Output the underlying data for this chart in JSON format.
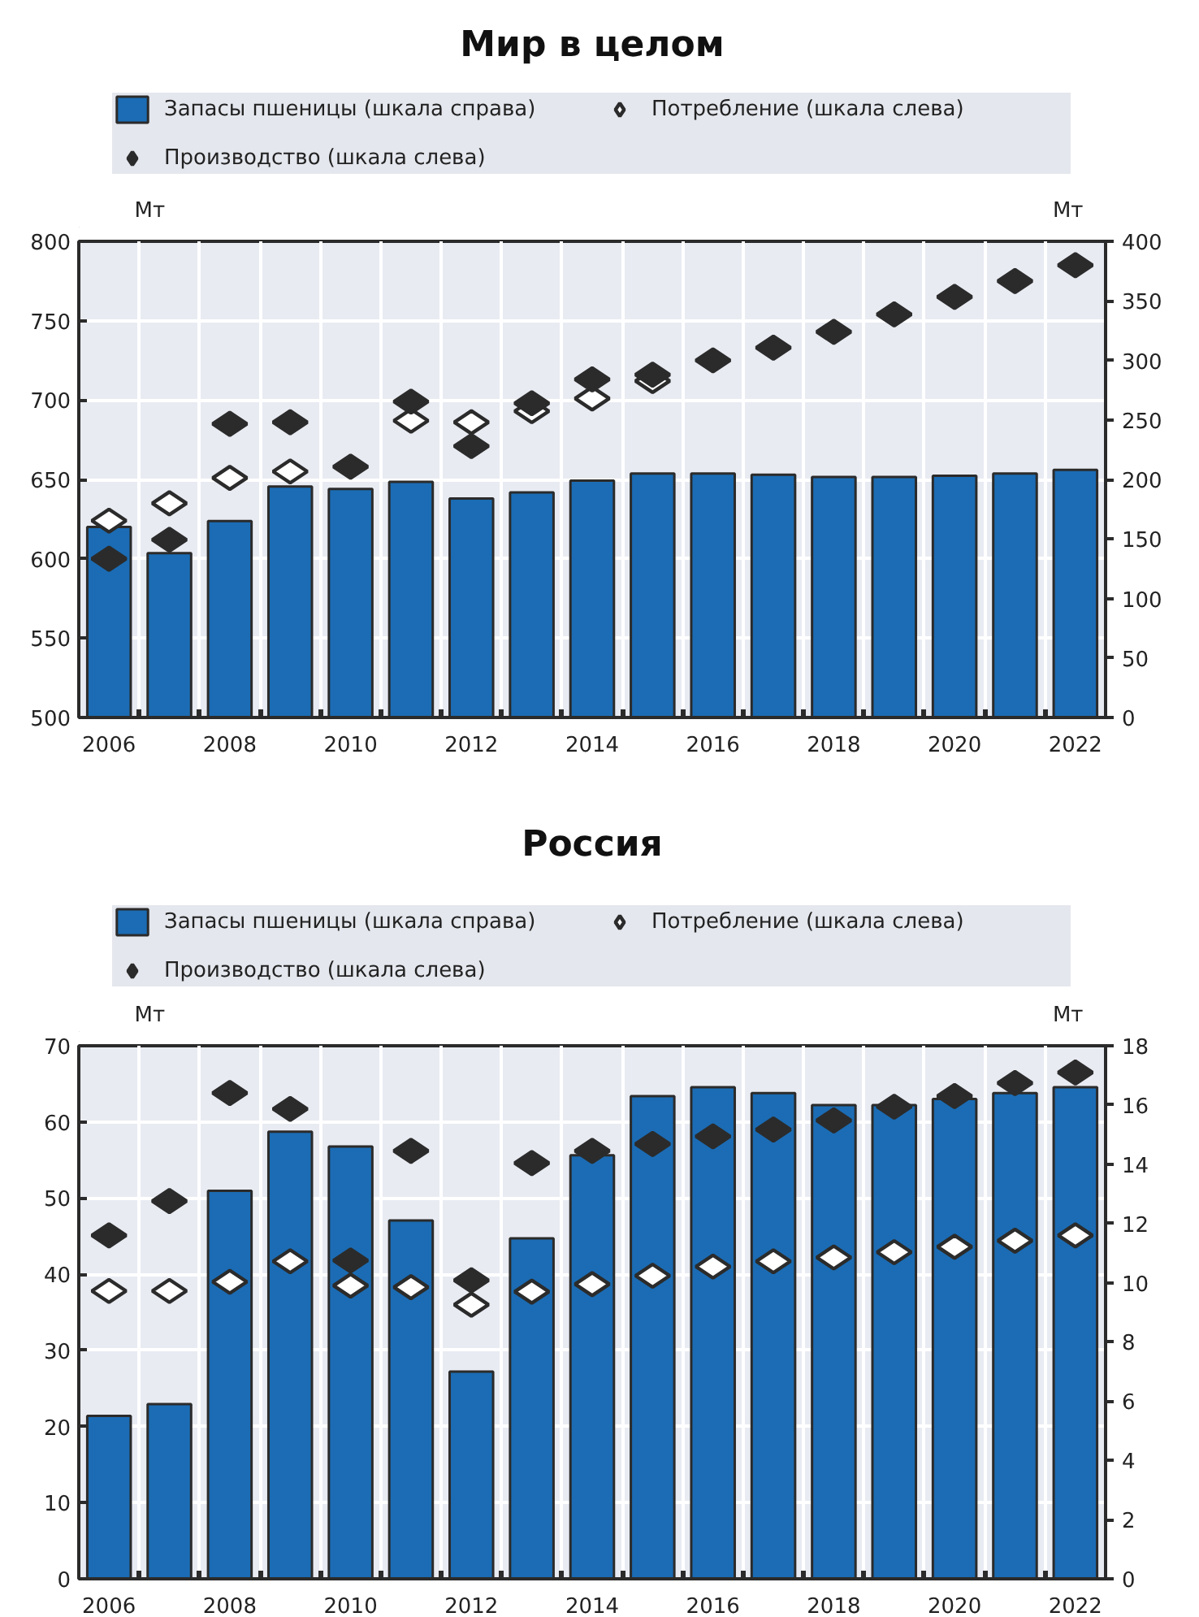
{
  "chart_data": [
    {
      "type": "bar",
      "title": "Мир в целом",
      "ylabel": "Мт",
      "y2label": "Мт",
      "categories": [
        "2006",
        null,
        "2008",
        null,
        "2010",
        null,
        "2012",
        null,
        "2014",
        null,
        "2016",
        null,
        "2018",
        null,
        "2020",
        null,
        "2022"
      ],
      "series": [
        {
          "name": "Запасы пшеницы (шкала справа)",
          "axis": "y2",
          "color": "#1b6cb4",
          "values": [
            160,
            138,
            165,
            194,
            192,
            198,
            184,
            189,
            199,
            205,
            205,
            204,
            202,
            202,
            203,
            205,
            208
          ]
        },
        {
          "name": "Потребление (шкала слева)",
          "type": "scatter",
          "color": "#ffffff",
          "values": [
            624,
            635,
            651,
            655,
            null,
            687,
            686,
            693,
            701,
            712,
            null,
            null,
            null,
            null,
            null,
            null,
            null
          ]
        },
        {
          "name": "Производство (шкала слева)",
          "type": "scatter",
          "color": "#2b2b2b",
          "values": [
            600,
            612,
            685,
            686,
            658,
            699,
            671,
            698,
            713,
            716,
            725,
            733,
            743,
            754,
            765,
            775,
            785
          ]
        }
      ],
      "ylim": [
        500,
        800
      ],
      "yticks": [
        500,
        550,
        600,
        650,
        700,
        750,
        800
      ],
      "y2lim": [
        0,
        400
      ],
      "y2ticks": [
        0,
        50,
        100,
        150,
        200,
        250,
        300,
        350,
        400
      ],
      "grid": true,
      "legend": "top",
      "marker": "diamond"
    },
    {
      "type": "bar",
      "title": "Россия",
      "ylabel": "Мт",
      "y2label": "Мт",
      "categories": [
        "2006",
        null,
        "2008",
        null,
        "2010",
        null,
        "2012",
        null,
        "2014",
        null,
        "2016",
        null,
        "2018",
        null,
        "2020",
        null,
        "2022"
      ],
      "series": [
        {
          "name": "Запасы пшеницы (шкала справа)",
          "axis": "y2",
          "color": "#1b6cb4",
          "values": [
            5.5,
            5.9,
            13.1,
            15.1,
            14.6,
            12.1,
            7.0,
            11.5,
            14.3,
            16.3,
            16.6,
            16.4,
            16.0,
            16.0,
            16.2,
            16.4,
            16.6
          ]
        },
        {
          "name": "Потребление (шкала слева)",
          "type": "scatter",
          "color": "#ffffff",
          "values": [
            37.8,
            37.8,
            39.0,
            41.7,
            38.5,
            38.3,
            36.0,
            37.7,
            38.7,
            39.8,
            41.0,
            41.7,
            42.2,
            42.9,
            43.6,
            44.4,
            45.1
          ]
        },
        {
          "name": "Производство (шкала слева)",
          "type": "scatter",
          "color": "#2b2b2b",
          "values": [
            45.1,
            49.6,
            63.8,
            61.7,
            41.8,
            56.2,
            39.2,
            54.6,
            56.2,
            57.1,
            58.1,
            59.0,
            60.2,
            62.0,
            63.4,
            65.1,
            66.5
          ]
        }
      ],
      "ylim": [
        0,
        70
      ],
      "yticks": [
        0,
        10,
        20,
        30,
        40,
        50,
        60,
        70
      ],
      "y2lim": [
        0,
        18
      ],
      "y2ticks": [
        0,
        2,
        4,
        6,
        8,
        10,
        12,
        14,
        16,
        18
      ],
      "grid": true,
      "legend": "top",
      "marker": "diamond"
    }
  ]
}
